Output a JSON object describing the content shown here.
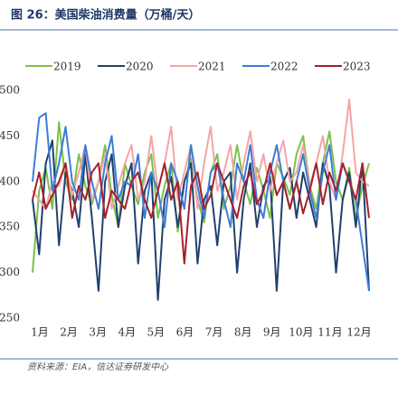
{
  "chart_data": {
    "type": "line",
    "title": "图 26：美国柴油消费量（万桶/天）",
    "source": "资料来源：EIA，信达证券研发中心",
    "x": [
      1,
      2,
      3,
      4,
      5,
      6,
      7,
      8,
      9,
      10,
      11,
      12,
      13,
      14,
      15,
      16,
      17,
      18,
      19,
      20,
      21,
      22,
      23,
      24,
      25,
      26,
      27,
      28,
      29,
      30,
      31,
      32,
      33,
      34,
      35,
      36,
      37,
      38,
      39,
      40,
      41,
      42,
      43,
      44,
      45,
      46,
      47,
      48,
      49,
      50,
      51,
      52
    ],
    "xlim": [
      1,
      52
    ],
    "xticks": [
      {
        "value": 1,
        "label": "1月"
      },
      {
        "value": 5.4,
        "label": "2月"
      },
      {
        "value": 9.8,
        "label": "3月"
      },
      {
        "value": 14.2,
        "label": "4月"
      },
      {
        "value": 18.6,
        "label": "5月"
      },
      {
        "value": 23,
        "label": "6月"
      },
      {
        "value": 27.4,
        "label": "7月"
      },
      {
        "value": 31.8,
        "label": "8月"
      },
      {
        "value": 36.2,
        "label": "9月"
      },
      {
        "value": 40.6,
        "label": "10月"
      },
      {
        "value": 45,
        "label": "11月"
      },
      {
        "value": 49.4,
        "label": "12月"
      }
    ],
    "ylim": [
      250,
      500
    ],
    "yticks": [
      250,
      300,
      350,
      400,
      450,
      500
    ],
    "series": [
      {
        "name": "2019",
        "color": "#7cc04a",
        "values": [
          300,
          390,
          415,
          370,
          465,
          400,
          380,
          430,
          395,
          375,
          400,
          440,
          385,
          350,
          420,
          395,
          375,
          410,
          430,
          360,
          395,
          420,
          345,
          400,
          425,
          380,
          355,
          410,
          430,
          370,
          395,
          440,
          400,
          375,
          415,
          390,
          360,
          420,
          405,
          385,
          430,
          450,
          395,
          370,
          420,
          455,
          400,
          380,
          415,
          360,
          395,
          420
        ]
      },
      {
        "name": "2020",
        "color": "#23406e",
        "values": [
          380,
          320,
          420,
          445,
          330,
          410,
          390,
          350,
          430,
          360,
          280,
          400,
          430,
          350,
          395,
          420,
          310,
          390,
          410,
          270,
          380,
          405,
          350,
          400,
          420,
          310,
          380,
          395,
          330,
          400,
          410,
          300,
          380,
          420,
          350,
          395,
          405,
          280,
          400,
          415,
          360,
          410,
          380,
          350,
          420,
          395,
          300,
          380,
          410,
          350,
          420,
          280
        ]
      },
      {
        "name": "2021",
        "color": "#f4a6a6",
        "values": [
          390,
          380,
          370,
          400,
          395,
          420,
          385,
          410,
          440,
          380,
          400,
          430,
          370,
          395,
          420,
          440,
          380,
          400,
          450,
          390,
          420,
          460,
          380,
          410,
          440,
          370,
          420,
          460,
          390,
          410,
          440,
          380,
          420,
          455,
          400,
          430,
          390,
          420,
          445,
          400,
          410,
          440,
          395,
          420,
          450,
          400,
          380,
          430,
          490,
          410,
          400,
          395
        ]
      },
      {
        "name": "2022",
        "color": "#3b7dd8",
        "values": [
          400,
          470,
          475,
          390,
          420,
          460,
          400,
          380,
          440,
          400,
          370,
          420,
          450,
          380,
          400,
          395,
          430,
          360,
          410,
          390,
          350,
          420,
          400,
          370,
          440,
          395,
          360,
          410,
          420,
          380,
          350,
          420,
          400,
          440,
          380,
          360,
          410,
          440,
          400,
          370,
          400,
          430,
          390,
          360,
          410,
          440,
          380,
          420,
          400,
          380,
          330,
          280
        ]
      },
      {
        "name": "2023",
        "color": "#a5202a",
        "values": [
          380,
          410,
          370,
          385,
          400,
          420,
          360,
          395,
          380,
          410,
          420,
          360,
          390,
          380,
          370,
          400,
          410,
          380,
          360,
          390,
          420,
          380,
          400,
          310,
          395,
          410,
          370,
          385,
          420,
          400,
          380,
          360,
          395,
          410,
          375,
          390,
          420,
          385,
          400,
          370,
          400,
          365,
          390,
          420,
          375,
          410,
          390,
          420,
          400,
          380,
          420,
          360
        ]
      }
    ]
  }
}
